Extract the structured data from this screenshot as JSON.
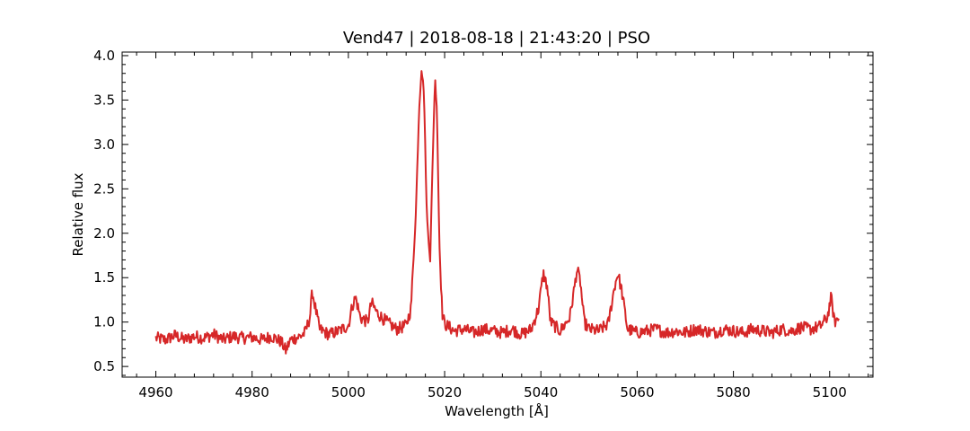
{
  "chart_data": {
    "type": "line",
    "title": "Vend47 | 2018-08-18 | 21:43:20 | PSO",
    "xlabel": "Wavelength [Å]",
    "ylabel": "Relative flux",
    "xlim": [
      4953,
      5109
    ],
    "ylim": [
      0.38,
      4.04
    ],
    "xticks": [
      4960,
      4980,
      5000,
      5020,
      5040,
      5060,
      5080,
      5100
    ],
    "yticks": [
      0.5,
      1.0,
      1.5,
      2.0,
      2.5,
      3.0,
      3.5,
      4.0
    ],
    "grid": false,
    "series": [
      {
        "color": "#d62728",
        "x": [
          4960,
          4962,
          4964,
          4966,
          4968,
          4970,
          4972,
          4974,
          4976,
          4978,
          4980,
          4982,
          4984,
          4986,
          4987,
          4988,
          4990,
          4991,
          4992,
          4992.5,
          4993,
          4994,
          4996,
          4998,
          5000,
          5000.8,
          5001.5,
          5002.5,
          5004,
          5004.8,
          5006,
          5008,
          5010,
          5012,
          5013,
          5014,
          5014.7,
          5015.2,
          5015.7,
          5016.3,
          5017,
          5017.5,
          5018,
          5018.4,
          5018.9,
          5019.5,
          5020,
          5022,
          5024,
          5026,
          5028,
          5030,
          5032,
          5034,
          5036,
          5038,
          5039.5,
          5040.5,
          5041.3,
          5042,
          5044,
          5046,
          5047,
          5047.5,
          5048.2,
          5049,
          5050,
          5052,
          5054,
          5055.3,
          5056,
          5056.8,
          5058,
          5060,
          5062,
          5064,
          5066,
          5068,
          5070,
          5072,
          5074,
          5076,
          5078,
          5080,
          5082,
          5084,
          5086,
          5088,
          5090,
          5092,
          5094,
          5096,
          5098,
          5099.5,
          5100.3,
          5101,
          5102
        ],
        "y": [
          0.82,
          0.8,
          0.85,
          0.8,
          0.84,
          0.82,
          0.86,
          0.8,
          0.84,
          0.82,
          0.83,
          0.8,
          0.84,
          0.78,
          0.68,
          0.8,
          0.84,
          0.88,
          1.05,
          1.35,
          1.2,
          0.92,
          0.86,
          0.9,
          0.96,
          1.18,
          1.28,
          1.05,
          1.0,
          1.22,
          1.1,
          1.0,
          0.92,
          0.96,
          1.15,
          2.2,
          3.4,
          3.85,
          3.6,
          2.2,
          1.7,
          2.8,
          3.75,
          3.4,
          1.9,
          1.1,
          0.98,
          0.9,
          0.92,
          0.88,
          0.92,
          0.9,
          0.88,
          0.92,
          0.86,
          0.92,
          1.15,
          1.55,
          1.4,
          1.0,
          0.9,
          1.05,
          1.4,
          1.6,
          1.45,
          1.0,
          0.92,
          0.9,
          0.98,
          1.4,
          1.55,
          1.35,
          0.92,
          0.88,
          0.9,
          0.92,
          0.88,
          0.9,
          0.88,
          0.92,
          0.9,
          0.88,
          0.92,
          0.9,
          0.88,
          0.92,
          0.9,
          0.88,
          0.92,
          0.9,
          0.94,
          0.92,
          0.95,
          1.05,
          1.28,
          1.0,
          1.05
        ]
      }
    ]
  }
}
